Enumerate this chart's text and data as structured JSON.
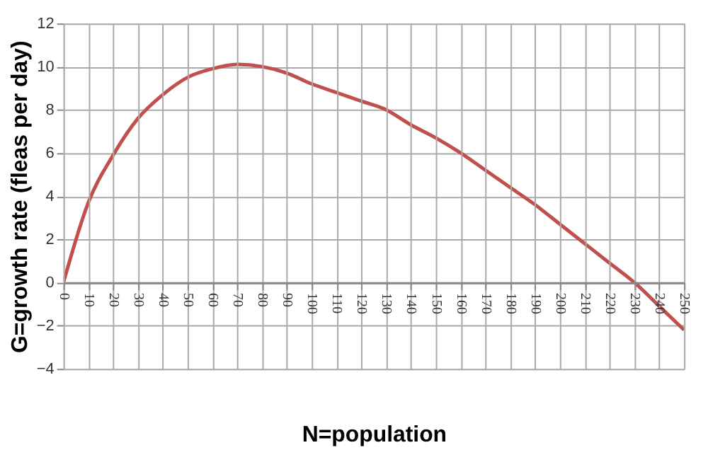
{
  "chart_data": {
    "type": "line",
    "xlabel": "N=population",
    "ylabel": "G=growth rate (fleas per day)",
    "x": [
      0,
      10,
      20,
      30,
      40,
      50,
      60,
      70,
      80,
      90,
      100,
      110,
      120,
      130,
      140,
      150,
      160,
      170,
      180,
      190,
      200,
      210,
      220,
      230,
      240,
      250
    ],
    "series": [
      {
        "color": "#c0504d",
        "values": [
          0,
          3.7,
          5.9,
          7.6,
          8.7,
          9.5,
          9.9,
          10.1,
          10.0,
          9.7,
          9.2,
          8.8,
          8.4,
          8.0,
          7.3,
          6.7,
          6.0,
          5.2,
          4.4,
          3.6,
          2.7,
          1.8,
          0.9,
          0.0,
          -1.1,
          -2.2
        ]
      }
    ],
    "xlim": [
      0,
      250
    ],
    "xticks": [
      0,
      10,
      20,
      30,
      40,
      50,
      60,
      70,
      80,
      90,
      100,
      110,
      120,
      130,
      140,
      150,
      160,
      170,
      180,
      190,
      200,
      210,
      220,
      230,
      240,
      250
    ],
    "ylim": [
      -4,
      12
    ],
    "yticks": [
      -4,
      -2,
      0,
      2,
      4,
      6,
      8,
      10,
      12
    ],
    "grid": true,
    "marker": "none",
    "line_style": "solid"
  }
}
